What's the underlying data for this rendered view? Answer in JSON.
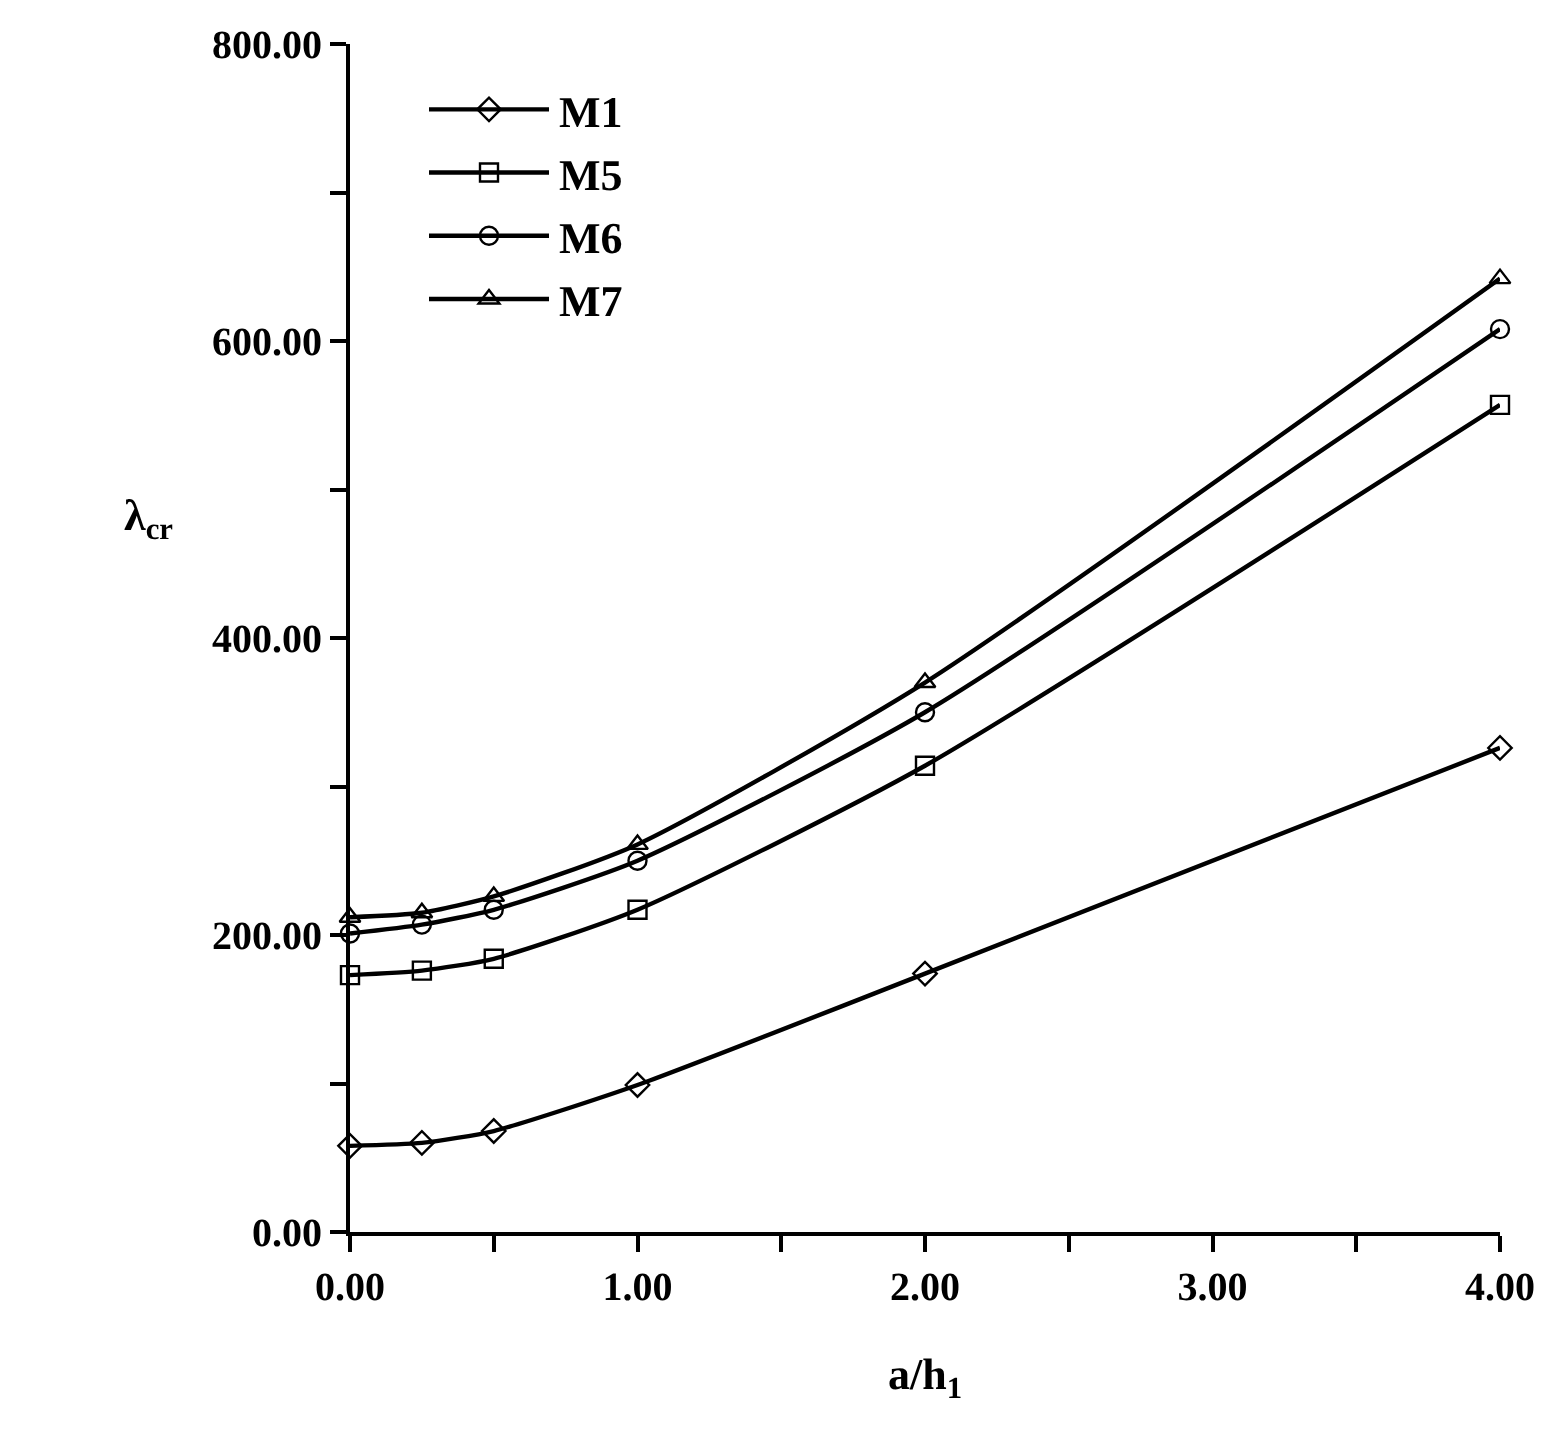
{
  "chart_data": {
    "type": "line",
    "xlabel": "a/h$_{1}$",
    "ylabel": "λ$_{cr}$",
    "x": [
      0,
      0.25,
      0.5,
      1,
      2,
      4
    ],
    "series": [
      {
        "name": "M1",
        "color": "#000000",
        "marker": "diamond",
        "values": [
          58,
          60,
          68,
          99,
          174,
          326
        ]
      },
      {
        "name": "M5",
        "color": "#000000",
        "marker": "square",
        "values": [
          173,
          176,
          184,
          217,
          314,
          557
        ]
      },
      {
        "name": "M6",
        "color": "#000000",
        "marker": "circle",
        "values": [
          201,
          207,
          217,
          250,
          350,
          608
        ]
      },
      {
        "name": "M7",
        "color": "#000000",
        "marker": "triangle",
        "values": [
          212,
          215,
          226,
          261,
          370,
          642
        ]
      }
    ],
    "xlim": [
      0,
      4
    ],
    "ylim": [
      0,
      800
    ],
    "xticks": [
      {
        "value": 0,
        "label": "0.00"
      },
      {
        "value": 0.5,
        "label": null
      },
      {
        "value": 1,
        "label": "1.00"
      },
      {
        "value": 1.5,
        "label": null
      },
      {
        "value": 2,
        "label": "2.00"
      },
      {
        "value": 2.5,
        "label": null
      },
      {
        "value": 3,
        "label": "3.00"
      },
      {
        "value": 3.5,
        "label": null
      },
      {
        "value": 4,
        "label": "4.00"
      }
    ],
    "yticks": [
      {
        "value": 0,
        "label": "0.00"
      },
      {
        "value": 100,
        "label": null
      },
      {
        "value": 200,
        "label": "200.00"
      },
      {
        "value": 300,
        "label": null
      },
      {
        "value": 400,
        "label": "400.00"
      },
      {
        "value": 500,
        "label": null
      },
      {
        "value": 600,
        "label": "600.00"
      },
      {
        "value": 700,
        "label": null
      },
      {
        "value": 800,
        "label": "800.00"
      }
    ],
    "legend": "top left",
    "line_style": "solid"
  }
}
